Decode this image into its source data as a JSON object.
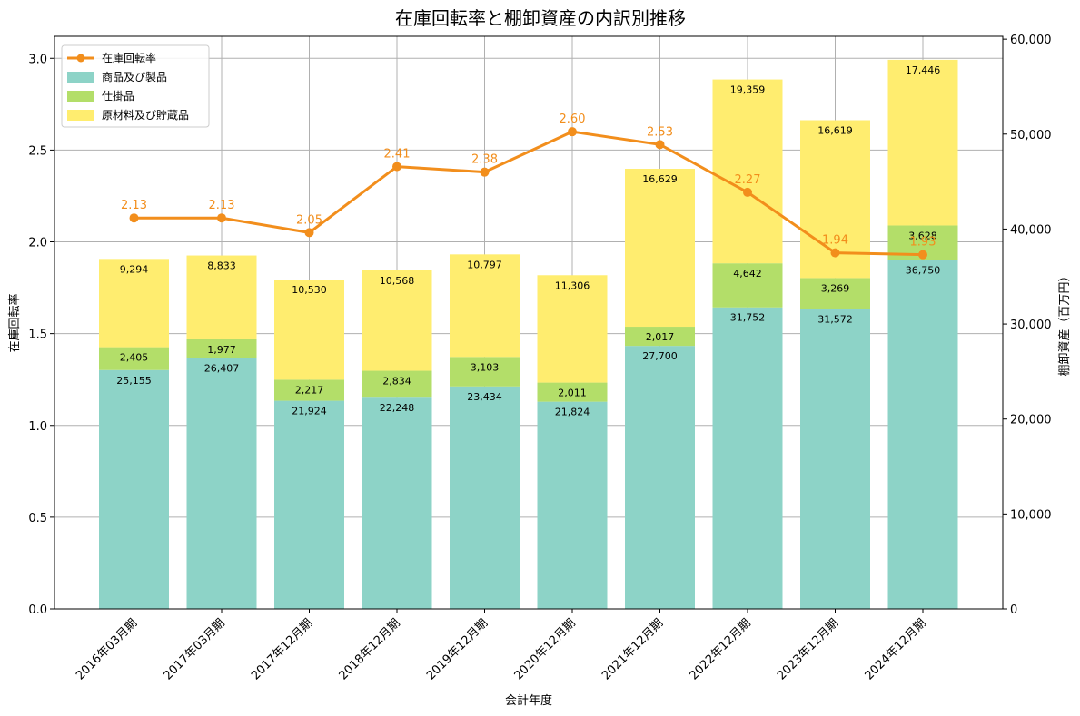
{
  "chart_data": {
    "type": "bar",
    "title": "在庫回転率と棚卸資産の内訳別推移",
    "xlabel": "会計年度",
    "ylabel_left": "在庫回転率",
    "ylabel_right": "棚卸資産（百万円）",
    "categories": [
      "2016年03月期",
      "2017年03月期",
      "2017年12月期",
      "2018年12月期",
      "2019年12月期",
      "2020年12月期",
      "2021年12月期",
      "2022年12月期",
      "2023年12月期",
      "2024年12月期"
    ],
    "series": [
      {
        "name": "商品及び製品",
        "kind": "bar",
        "color": "#8dd3c7",
        "values": [
          25155,
          26407,
          21924,
          22248,
          23434,
          21824,
          27700,
          31752,
          31572,
          36750
        ],
        "labels": [
          "25,155",
          "26,407",
          "21,924",
          "22,248",
          "23,434",
          "21,824",
          "27,700",
          "31,752",
          "31,572",
          "36,750"
        ]
      },
      {
        "name": "仕掛品",
        "kind": "bar",
        "color": "#b3de69",
        "values": [
          2405,
          1977,
          2217,
          2834,
          3103,
          2011,
          2017,
          4642,
          3269,
          3628
        ],
        "labels": [
          "2,405",
          "1,977",
          "2,217",
          "2,834",
          "3,103",
          "2,011",
          "2,017",
          "4,642",
          "3,269",
          "3,628"
        ]
      },
      {
        "name": "原材料及び貯蔵品",
        "kind": "bar",
        "color": "#ffed6f",
        "values": [
          9294,
          8833,
          10530,
          10568,
          10797,
          11306,
          16629,
          19359,
          16619,
          17446
        ],
        "labels": [
          "9,294",
          "8,833",
          "10,530",
          "10,568",
          "10,797",
          "11,306",
          "16,629",
          "19,359",
          "16,619",
          "17,446"
        ]
      },
      {
        "name": "在庫回転率",
        "kind": "line",
        "color": "#f28e1c",
        "values": [
          2.13,
          2.13,
          2.05,
          2.41,
          2.38,
          2.6,
          2.53,
          2.27,
          1.94,
          1.93
        ],
        "labels": [
          "2.13",
          "2.13",
          "2.05",
          "2.41",
          "2.38",
          "2.60",
          "2.53",
          "2.27",
          "1.94",
          "1.93"
        ]
      }
    ],
    "legend_order": [
      "在庫回転率",
      "商品及び製品",
      "仕掛品",
      "原材料及び貯蔵品"
    ],
    "ylim_left": [
      0,
      3.12
    ],
    "yticks_left": [
      "0.0",
      "0.5",
      "1.0",
      "1.5",
      "2.0",
      "2.5",
      "3.0"
    ],
    "ylim_right": [
      0,
      60300
    ],
    "yticks_right": [
      "0",
      "10,000",
      "20,000",
      "30,000",
      "40,000",
      "50,000",
      "60,000"
    ],
    "grid": true,
    "legend_position": "top-left"
  }
}
